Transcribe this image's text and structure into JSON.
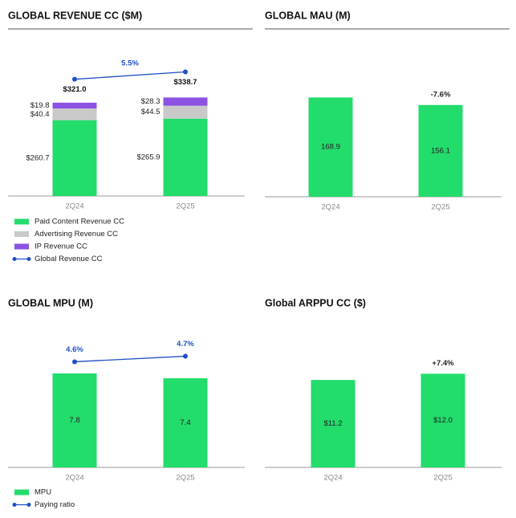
{
  "chart_data": [
    {
      "type": "bar",
      "title": "GLOBAL REVENUE CC ($M)",
      "categories": [
        "2Q24",
        "2Q25"
      ],
      "ylim": [
        0,
        500
      ],
      "y2lim": [
        40,
        390
      ],
      "annotation": "5.5%",
      "series": [
        {
          "name": "Paid Content Revenue CC",
          "color": "#22dc6b",
          "values": [
            260.7,
            265.9
          ],
          "value_labels": [
            "$260.7",
            "$265.9"
          ]
        },
        {
          "name": "Advertising Revenue CC",
          "color": "#c9c9c9",
          "values": [
            40.4,
            44.5
          ],
          "value_labels": [
            "$40.4",
            "$44.5"
          ]
        },
        {
          "name": "IP Revenue CC",
          "color": "#8b52e3",
          "values": [
            19.8,
            28.3
          ],
          "value_labels": [
            "$19.8",
            "$28.3"
          ]
        },
        {
          "name": "Global Revenue CC",
          "type": "line",
          "axis": "y2",
          "color": "#1f4fc6",
          "values": [
            321.0,
            338.7
          ],
          "value_labels": [
            "$321.0",
            "$338.7"
          ]
        }
      ]
    },
    {
      "type": "bar",
      "title": "GLOBAL MAU (M)",
      "categories": [
        "2Q24",
        "2Q25"
      ],
      "ylim": [
        0,
        250
      ],
      "annotation": "-7.6%",
      "color": "#22dc6b",
      "values": [
        168.9,
        156.1
      ]
    },
    {
      "type": "bar",
      "title": "GLOBAL MPU (M)",
      "categories": [
        "2Q24",
        "2Q25"
      ],
      "ylim": [
        0,
        12
      ],
      "y2lim": [
        2.7,
        5.3
      ],
      "series": [
        {
          "name": "MPU",
          "color": "#22dc6b",
          "values": [
            7.8,
            7.4
          ]
        },
        {
          "name": "Paying ratio",
          "type": "line",
          "axis": "y2",
          "color": "#1f4fc6",
          "values": [
            4.6,
            4.7
          ],
          "value_labels": [
            "4.6%",
            "4.7%"
          ]
        }
      ]
    },
    {
      "type": "bar",
      "title": "Global ARPPU CC ($)",
      "categories": [
        "2Q24",
        "2Q25"
      ],
      "ylim": [
        0,
        18
      ],
      "annotation": "+7.4%",
      "color": "#22dc6b",
      "values": [
        11.2,
        12.0
      ],
      "value_labels": [
        "$11.2",
        "$12.0"
      ]
    }
  ]
}
